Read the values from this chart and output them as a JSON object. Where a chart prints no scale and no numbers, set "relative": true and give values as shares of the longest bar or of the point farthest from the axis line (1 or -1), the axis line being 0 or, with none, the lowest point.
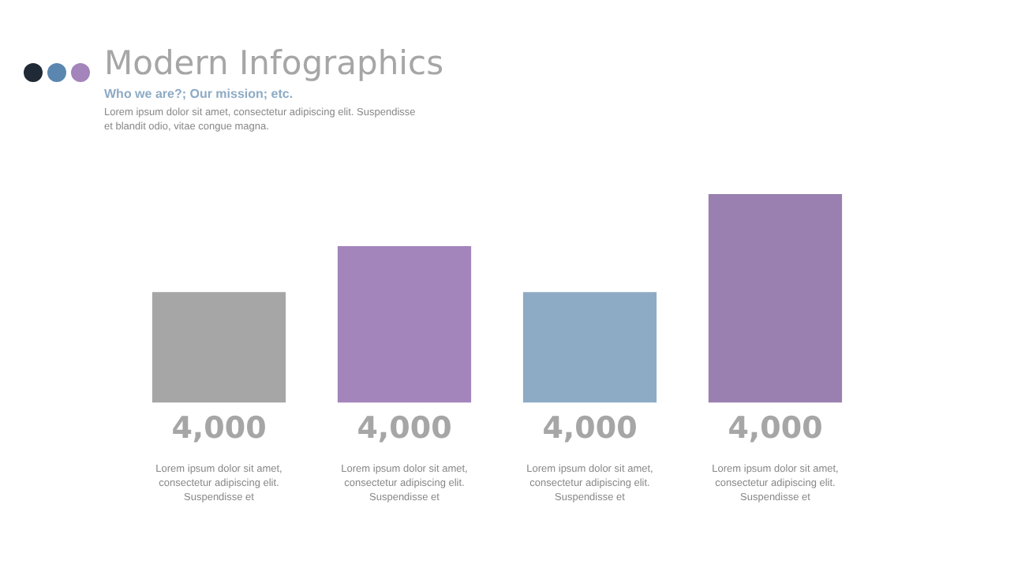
{
  "chart_data": {
    "type": "bar",
    "title": "Modern Infographics",
    "subtitle": "Who we are?; Our mission; etc.",
    "categories": [
      "4,000",
      "4,000",
      "4,000",
      "4,000"
    ],
    "values": [
      0.53,
      0.75,
      0.53,
      1
    ],
    "colors": [
      "#a6a6a6",
      "#a384bb",
      "#8eabc5",
      "#9a80b0"
    ],
    "relative": true,
    "grid": false,
    "legend": false,
    "annotations": [
      "Lorem ipsum dolor sit amet, consectetur adipiscing elit. Suspendisse et blandit odio, vitae congue magna.",
      "Lorem ipsum dolor sit amet, consectetur adipiscing elit. Suspendisse et",
      "Lorem ipsum dolor sit amet, consectetur adipiscing elit. Suspendisse et",
      "Lorem ipsum dolor sit amet, consectetur adipiscing elit. Suspendisse et",
      "Lorem ipsum dolor sit amet, consectetur adipiscing elit. Suspendisse et"
    ]
  }
}
